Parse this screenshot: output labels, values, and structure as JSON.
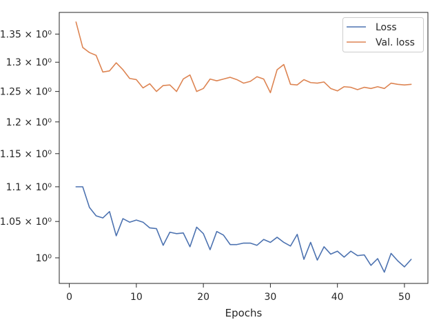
{
  "chart_data": {
    "type": "line",
    "xlabel": "Epochs",
    "ylabel": "",
    "title": "",
    "y_scale": "log",
    "xlim": [
      -1.5,
      53.5
    ],
    "ylim": [
      0.9663,
      1.3898
    ],
    "x_ticks": [
      0,
      10,
      20,
      30,
      40,
      50
    ],
    "y_ticks": [
      {
        "value": 1.0,
        "label": "10⁰"
      },
      {
        "value": 1.05,
        "label": "1.05 × 10⁰"
      },
      {
        "value": 1.1,
        "label": "1.1 × 10⁰"
      },
      {
        "value": 1.15,
        "label": "1.15 × 10⁰"
      },
      {
        "value": 1.2,
        "label": "1.2 × 10⁰"
      },
      {
        "value": 1.25,
        "label": "1.25 × 10⁰"
      },
      {
        "value": 1.3,
        "label": "1.3 × 10⁰"
      },
      {
        "value": 1.35,
        "label": "1.35 × 10⁰"
      }
    ],
    "grid": false,
    "legend_position": "top-right",
    "x": [
      1,
      2,
      3,
      4,
      5,
      6,
      7,
      8,
      9,
      10,
      11,
      12,
      13,
      14,
      15,
      16,
      17,
      18,
      19,
      20,
      21,
      22,
      23,
      24,
      25,
      26,
      27,
      28,
      29,
      30,
      31,
      32,
      33,
      34,
      35,
      36,
      37,
      38,
      39,
      40,
      41,
      42,
      43,
      44,
      45,
      46,
      47,
      48,
      49,
      50,
      51
    ],
    "series": [
      {
        "name": "Loss",
        "color": "#4c72b0",
        "values": [
          1.1,
          1.1,
          1.07,
          1.058,
          1.055,
          1.064,
          1.03,
          1.054,
          1.049,
          1.052,
          1.049,
          1.041,
          1.04,
          1.017,
          1.035,
          1.033,
          1.034,
          1.015,
          1.042,
          1.033,
          1.011,
          1.036,
          1.031,
          1.018,
          1.018,
          1.02,
          1.02,
          1.017,
          1.025,
          1.021,
          1.028,
          1.021,
          1.016,
          1.032,
          0.998,
          1.021,
          0.997,
          1.015,
          1.005,
          1.009,
          1.001,
          1.009,
          1.003,
          1.004,
          0.99,
          0.999,
          0.981,
          1.006,
          0.996,
          0.988,
          0.998
        ]
      },
      {
        "name": "Val. loss",
        "color": "#dd8452",
        "values": [
          1.372,
          1.326,
          1.317,
          1.312,
          1.283,
          1.285,
          1.299,
          1.287,
          1.272,
          1.27,
          1.256,
          1.263,
          1.25,
          1.26,
          1.261,
          1.25,
          1.271,
          1.278,
          1.25,
          1.255,
          1.271,
          1.268,
          1.271,
          1.274,
          1.27,
          1.264,
          1.267,
          1.275,
          1.271,
          1.248,
          1.287,
          1.296,
          1.262,
          1.261,
          1.27,
          1.265,
          1.264,
          1.266,
          1.255,
          1.251,
          1.258,
          1.257,
          1.253,
          1.257,
          1.255,
          1.258,
          1.255,
          1.264,
          1.262,
          1.261,
          1.262
        ]
      }
    ]
  }
}
